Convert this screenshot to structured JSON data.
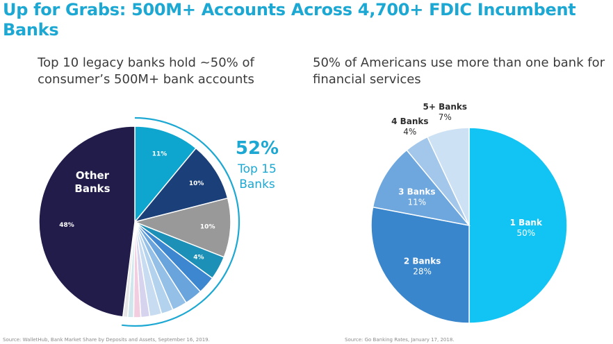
{
  "header": {
    "title": "Up for Grabs: 500M+ Accounts Across 4,700+ FDIC Incumbent Banks"
  },
  "chart_data": [
    {
      "type": "pie",
      "subtitle": "Top 10 legacy banks hold ~50% of consumer’s 500M+ bank accounts",
      "slices": [
        {
          "label": "",
          "value": 11,
          "value_label": "11%",
          "color": "#0ea6cf"
        },
        {
          "label": "",
          "value": 10,
          "value_label": "10%",
          "color": "#1b3f78"
        },
        {
          "label": "",
          "value": 10,
          "value_label": "10%",
          "color": "#999999"
        },
        {
          "label": "",
          "value": 4,
          "value_label": "4%",
          "color": "#1c90b6"
        },
        {
          "label": "",
          "value": 3,
          "value_label": "",
          "color": "#3d86d0"
        },
        {
          "label": "",
          "value": 3,
          "value_label": "",
          "color": "#6aa4dc"
        },
        {
          "label": "",
          "value": 2.5,
          "value_label": "",
          "color": "#94c0e8"
        },
        {
          "label": "",
          "value": 2,
          "value_label": "",
          "color": "#b2d2ee"
        },
        {
          "label": "",
          "value": 2,
          "value_label": "",
          "color": "#c8dcf1"
        },
        {
          "label": "",
          "value": 1.5,
          "value_label": "",
          "color": "#d6d3ee"
        },
        {
          "label": "",
          "value": 1.2,
          "value_label": "",
          "color": "#f2cde0"
        },
        {
          "label": "",
          "value": 1,
          "value_label": "",
          "color": "#cfe7ec"
        },
        {
          "label": "",
          "value": 0.8,
          "value_label": "",
          "color": "#e6e6e6"
        },
        {
          "label": "Other Banks",
          "value": 48,
          "value_label": "48%",
          "color": "#221c4a"
        }
      ],
      "callout": {
        "value": "52%",
        "label": "Top 15 Banks"
      },
      "source": "Source: WalletHub, Bank Market Share by Deposits and Assets, September 16, 2019."
    },
    {
      "type": "pie",
      "subtitle": "50% of Americans use more than one bank for financial services",
      "slices": [
        {
          "label": "1 Bank",
          "value": 50,
          "value_label": "50%",
          "color": "#12c4f4"
        },
        {
          "label": "2 Banks",
          "value": 28,
          "value_label": "28%",
          "color": "#3a86cc"
        },
        {
          "label": "3 Banks",
          "value": 11,
          "value_label": "11%",
          "color": "#6ea7de"
        },
        {
          "label": "4 Banks",
          "value": 4,
          "value_label": "4%",
          "color": "#a3c7ea"
        },
        {
          "label": "5+ Banks",
          "value": 7,
          "value_label": "7%",
          "color": "#cde1f4"
        }
      ],
      "source": "Source: Go Banking Rates, January 17, 2018."
    }
  ]
}
